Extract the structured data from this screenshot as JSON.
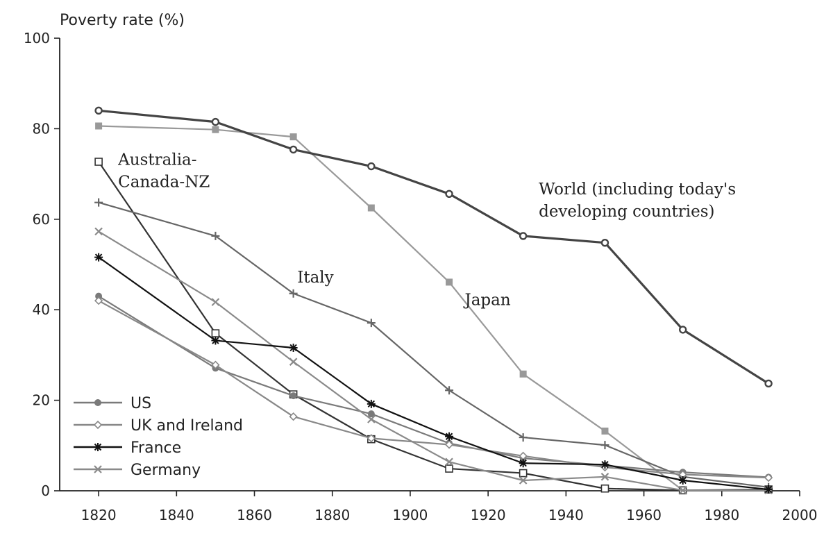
{
  "chart_data": {
    "type": "line",
    "title": "",
    "ylabel": "Poverty rate (%)",
    "xlabel": "",
    "xlim": [
      1810,
      2000
    ],
    "ylim": [
      0,
      100
    ],
    "x_ticks": [
      1820,
      1840,
      1860,
      1880,
      1900,
      1920,
      1940,
      1960,
      1980,
      2000
    ],
    "y_ticks": [
      0,
      20,
      40,
      60,
      80,
      100
    ],
    "x_tick_labels": [
      "1820",
      "1840",
      "1860",
      "1880",
      "1900",
      "1920",
      "1940",
      "1960",
      "1980",
      "2000"
    ],
    "y_tick_labels": [
      "0",
      "20",
      "40",
      "60",
      "80",
      "100"
    ],
    "grid": false,
    "legend_position": "bottom-left",
    "series": [
      {
        "name": "World (including today's developing countries)",
        "color": "#444444",
        "marker": "circle-open",
        "x": [
          1820,
          1850,
          1870,
          1890,
          1910,
          1929,
          1950,
          1970,
          1992
        ],
        "y": [
          84,
          81.5,
          75.4,
          71.7,
          65.6,
          56.3,
          54.8,
          35.6,
          23.7
        ]
      },
      {
        "name": "Japan",
        "color": "#999999",
        "marker": "square-filled",
        "x": [
          1820,
          1850,
          1870,
          1890,
          1910,
          1929,
          1950,
          1970,
          1992
        ],
        "y": [
          80.6,
          79.8,
          78.2,
          62.5,
          46.1,
          25.8,
          13.2,
          0.1,
          0.2
        ]
      },
      {
        "name": "Australia-Canada-NZ",
        "color": "#333333",
        "marker": "square-open",
        "x": [
          1820,
          1850,
          1870,
          1890,
          1910,
          1929,
          1950,
          1970,
          1992
        ],
        "y": [
          72.7,
          34.8,
          21.3,
          11.4,
          4.9,
          3.9,
          0.5,
          0.1,
          0.3
        ]
      },
      {
        "name": "Italy",
        "color": "#666666",
        "marker": "plus",
        "x": [
          1820,
          1850,
          1870,
          1890,
          1910,
          1929,
          1950,
          1970,
          1992
        ],
        "y": [
          63.7,
          56.3,
          43.6,
          37.1,
          22.2,
          11.8,
          10.1,
          3.1,
          0.8
        ]
      },
      {
        "name": "US",
        "color": "#7a7a7a",
        "marker": "circle-filled",
        "x": [
          1820,
          1850,
          1870,
          1890,
          1910,
          1929,
          1950,
          1970,
          1992
        ],
        "y": [
          43,
          27.1,
          21,
          17,
          10.5,
          7.2,
          5.6,
          4.1,
          3
        ]
      },
      {
        "name": "UK and Ireland",
        "color": "#888888",
        "marker": "diamond-open",
        "x": [
          1820,
          1850,
          1870,
          1890,
          1910,
          1929,
          1950,
          1970,
          1992
        ],
        "y": [
          42,
          27.8,
          16.4,
          11.6,
          10.2,
          7.7,
          5.2,
          3.6,
          2.9
        ]
      },
      {
        "name": "France",
        "color": "#111111",
        "marker": "asterisk",
        "x": [
          1820,
          1850,
          1870,
          1890,
          1910,
          1929,
          1950,
          1970,
          1992
        ],
        "y": [
          51.6,
          33.2,
          31.6,
          19.2,
          12,
          6.1,
          5.8,
          2.3,
          0.3
        ]
      },
      {
        "name": "Germany",
        "color": "#8a8a8a",
        "marker": "x",
        "x": [
          1820,
          1850,
          1870,
          1890,
          1910,
          1929,
          1950,
          1970,
          1992
        ],
        "y": [
          57.3,
          41.7,
          28.5,
          15.8,
          6.4,
          2.3,
          3.1,
          0.1,
          0.1
        ]
      }
    ],
    "legend": [
      {
        "label": "US",
        "color": "#7a7a7a",
        "marker": "circle-filled"
      },
      {
        "label": "UK and Ireland",
        "color": "#888888",
        "marker": "diamond-open"
      },
      {
        "label": "France",
        "color": "#111111",
        "marker": "asterisk"
      },
      {
        "label": "Germany",
        "color": "#8a8a8a",
        "marker": "x"
      }
    ],
    "annotations": [
      {
        "lines": [
          "Australia-",
          "Canada-NZ"
        ],
        "x": 1825,
        "y": 72
      },
      {
        "lines": [
          "Italy"
        ],
        "x": 1871,
        "y": 46
      },
      {
        "lines": [
          "Japan"
        ],
        "x": 1914,
        "y": 41
      },
      {
        "lines": [
          "World (including today's",
          "developing countries)"
        ],
        "x": 1933,
        "y": 65.5
      }
    ]
  }
}
